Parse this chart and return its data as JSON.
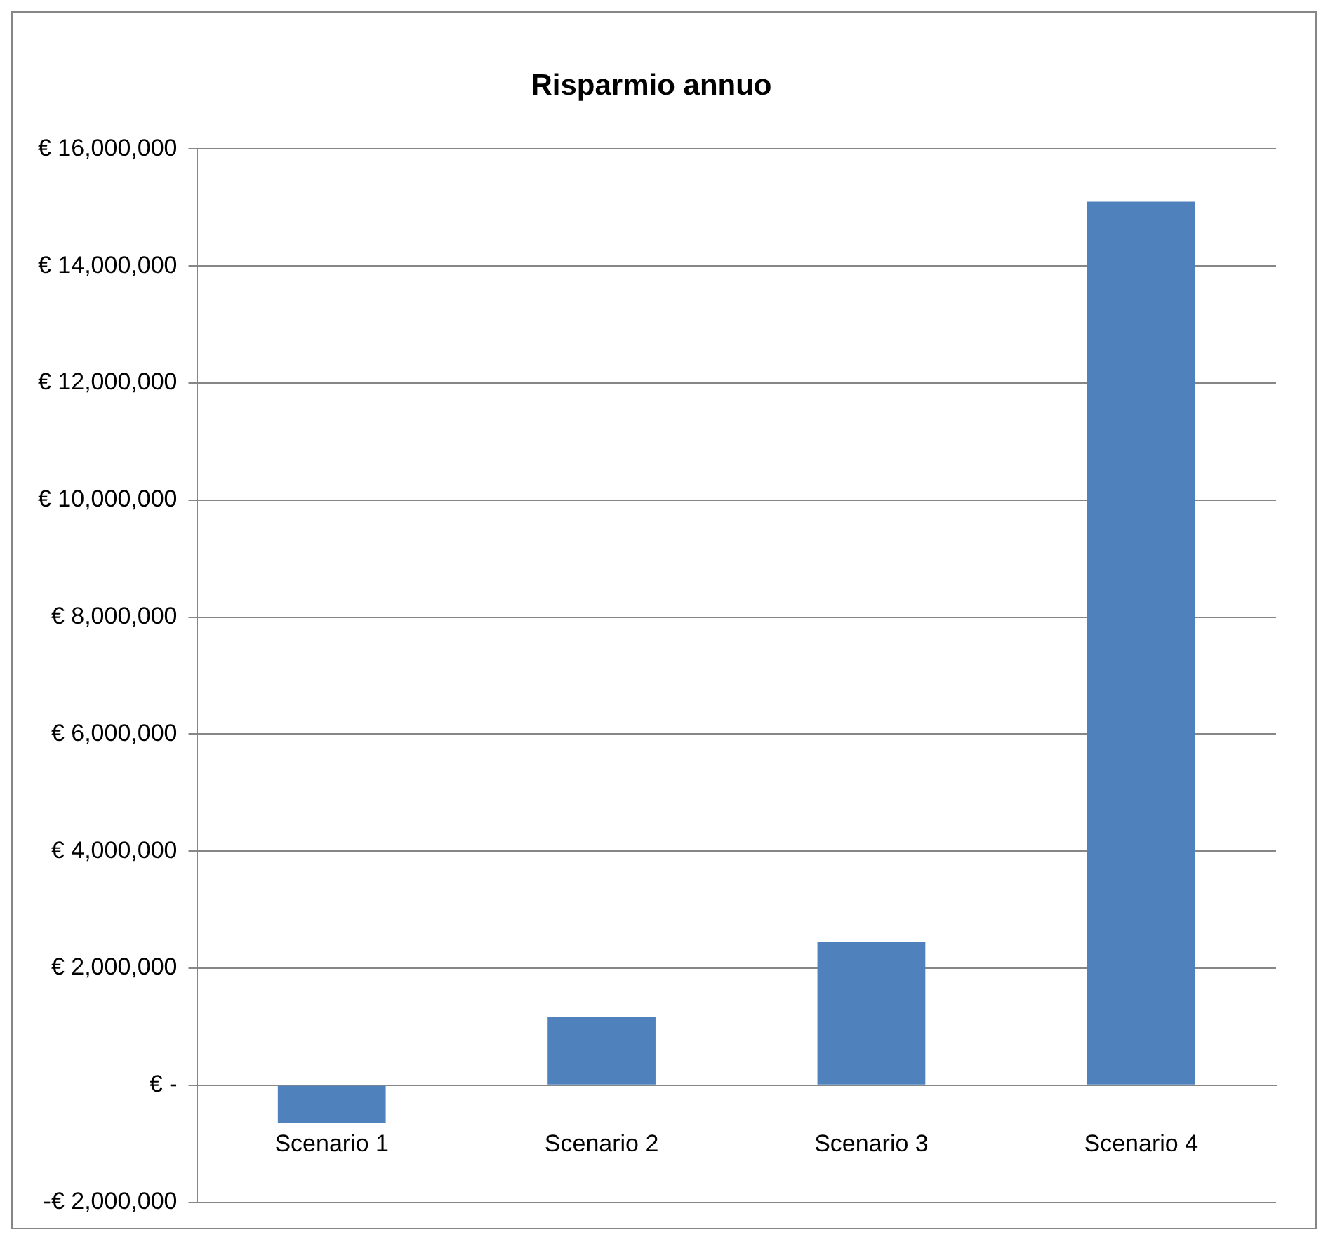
{
  "chart_data": {
    "type": "bar",
    "title": "Risparmio annuo",
    "categories": [
      "Scenario 1",
      "Scenario 2",
      "Scenario 3",
      "Scenario 4"
    ],
    "values": [
      -640000,
      1160000,
      2450000,
      15100000
    ],
    "color": "#4f81bd",
    "ylim": [
      -2000000,
      16000000
    ],
    "yticks": [
      {
        "value": -2000000,
        "label": "-€ 2,000,000"
      },
      {
        "value": 0,
        "label": "€ -"
      },
      {
        "value": 2000000,
        "label": "€ 2,000,000"
      },
      {
        "value": 4000000,
        "label": "€ 4,000,000"
      },
      {
        "value": 6000000,
        "label": "€ 6,000,000"
      },
      {
        "value": 8000000,
        "label": "€ 8,000,000"
      },
      {
        "value": 10000000,
        "label": "€ 10,000,000"
      },
      {
        "value": 12000000,
        "label": "€ 12,000,000"
      },
      {
        "value": 14000000,
        "label": "€ 14,000,000"
      },
      {
        "value": 16000000,
        "label": "€ 16,000,000"
      }
    ],
    "grid": "y",
    "legend": false
  }
}
